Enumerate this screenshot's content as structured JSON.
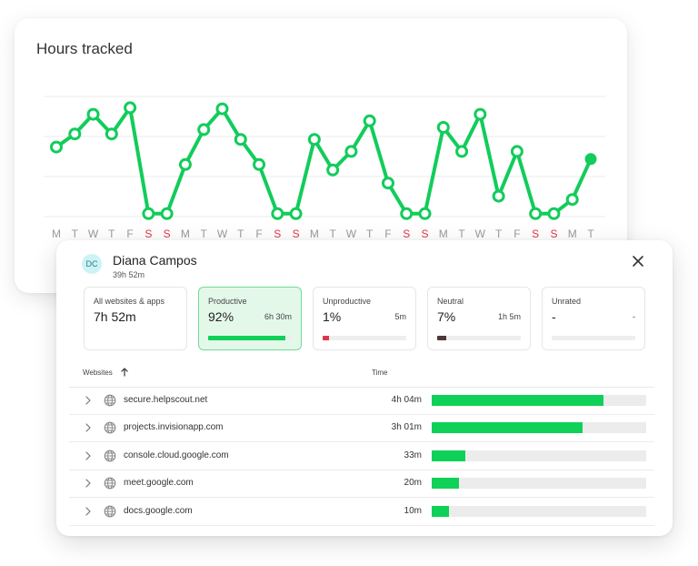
{
  "chart_data": {
    "type": "line",
    "title": "Hours tracked",
    "categories": [
      "M",
      "T",
      "W",
      "T",
      "F",
      "S",
      "S",
      "M",
      "T",
      "W",
      "T",
      "F",
      "S",
      "S",
      "M",
      "T",
      "W",
      "T",
      "F",
      "S",
      "S",
      "M",
      "T",
      "W",
      "T",
      "F",
      "S",
      "S",
      "M",
      "T"
    ],
    "weekend_indices": [
      5,
      6,
      12,
      13,
      19,
      20,
      26,
      27
    ],
    "values": [
      6.2,
      7.4,
      9.2,
      7.4,
      9.8,
      0.1,
      0.1,
      4.6,
      7.8,
      9.7,
      6.9,
      4.6,
      0.1,
      0.1,
      6.9,
      4.1,
      5.8,
      8.6,
      2.9,
      0.1,
      0.1,
      8.0,
      5.8,
      9.2,
      1.7,
      5.8,
      0.1,
      0.1,
      1.4,
      5.1
    ],
    "ylim": [
      0,
      11
    ],
    "grid": true,
    "line_color": "#12cc5b",
    "weekend_label_color": "#e0364a",
    "weekday_label_color": "#9a9a9a"
  },
  "detail": {
    "avatar_initials": "DC",
    "user_name": "Diana Campos",
    "total_hours": "39h 52m",
    "close_icon": "close-icon",
    "stats": [
      {
        "label": "All websites & apps",
        "value": "7h 52m",
        "time": "",
        "fraction": null,
        "color": ""
      },
      {
        "label": "Productive",
        "value": "92%",
        "time": "6h 30m",
        "fraction": 0.92,
        "color": "#0fd158"
      },
      {
        "label": "Unproductive",
        "value": "1%",
        "time": "5m",
        "fraction": 0.08,
        "color": "#e0364a"
      },
      {
        "label": "Neutral",
        "value": "7%",
        "time": "1h 5m",
        "fraction": 0.11,
        "color": "#4a3a36"
      },
      {
        "label": "Unrated",
        "value": "-",
        "time": "-",
        "fraction": 0,
        "color": "#cccccc"
      }
    ],
    "table": {
      "col_websites": "Websites",
      "col_time": "Time",
      "rows": [
        {
          "site": "secure.helpscout.net",
          "time": "4h 04m",
          "fraction": 0.8
        },
        {
          "site": "projects.invisionapp.com",
          "time": "3h 01m",
          "fraction": 0.705
        },
        {
          "site": "console.cloud.google.com",
          "time": "33m",
          "fraction": 0.155
        },
        {
          "site": "meet.google.com",
          "time": "20m",
          "fraction": 0.125
        },
        {
          "site": "docs.google.com",
          "time": "10m",
          "fraction": 0.08
        }
      ]
    }
  }
}
